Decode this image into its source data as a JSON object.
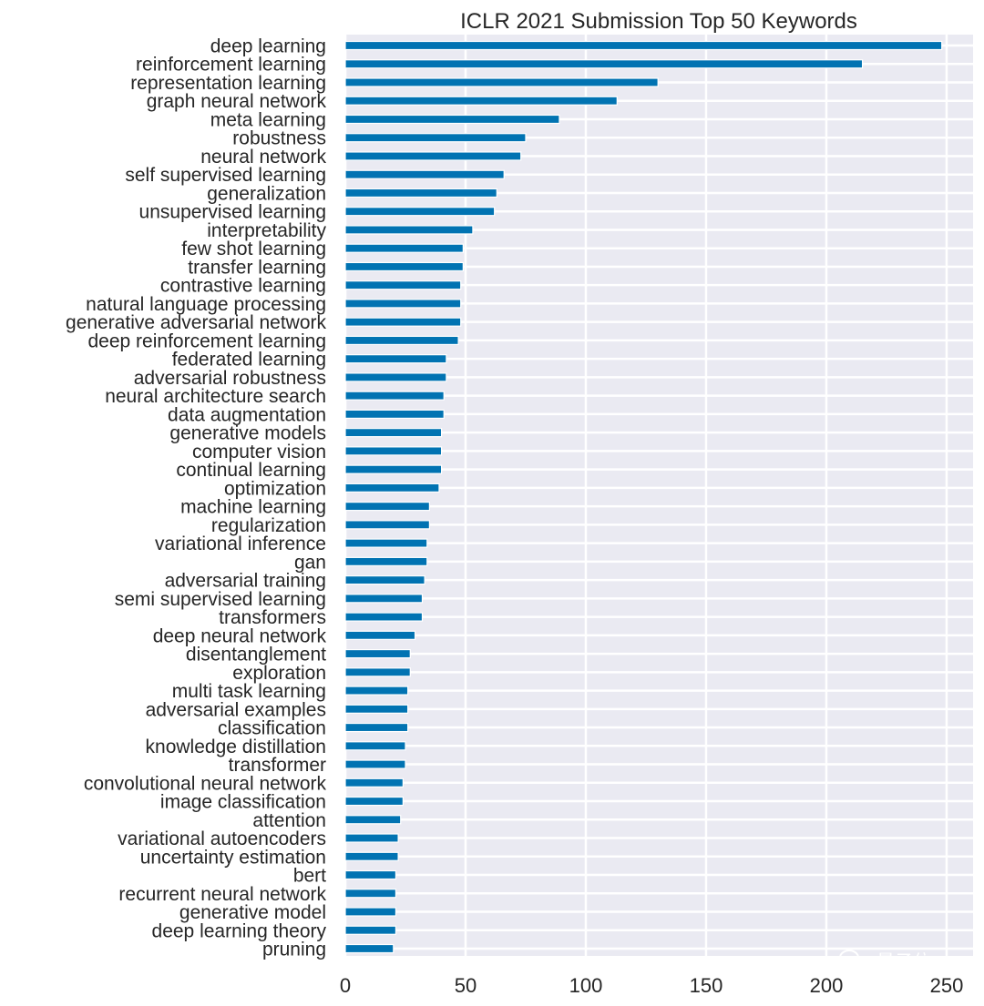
{
  "chart_data": {
    "type": "bar",
    "orientation": "horizontal",
    "title": "ICLR 2021 Submission Top 50 Keywords",
    "xlabel": "",
    "ylabel": "",
    "xlim": [
      0,
      261
    ],
    "xticks": [
      0,
      50,
      100,
      150,
      200,
      250
    ],
    "grid": true,
    "bar_color": "#0173B2",
    "background_color": "#EAEAF2",
    "categories": [
      "deep learning",
      "reinforcement learning",
      "representation learning",
      "graph neural network",
      "meta learning",
      "robustness",
      "neural network",
      "self supervised learning",
      "generalization",
      "unsupervised learning",
      "interpretability",
      "few shot learning",
      "transfer learning",
      "contrastive learning",
      "natural language processing",
      "generative adversarial network",
      "deep reinforcement learning",
      "federated learning",
      "adversarial robustness",
      "neural architecture search",
      "data augmentation",
      "generative models",
      "computer vision",
      "continual learning",
      "optimization",
      "machine learning",
      "regularization",
      "variational inference",
      "gan",
      "adversarial training",
      "semi supervised learning",
      "transformers",
      "deep neural network",
      "disentanglement",
      "exploration",
      "multi task learning",
      "adversarial examples",
      "classification",
      "knowledge distillation",
      "transformer",
      "convolutional neural network",
      "image classification",
      "attention",
      "variational autoencoders",
      "uncertainty estimation",
      "bert",
      "recurrent neural network",
      "generative model",
      "deep learning theory",
      "pruning"
    ],
    "values": [
      248,
      215,
      130,
      113,
      89,
      75,
      73,
      66,
      63,
      62,
      53,
      49,
      49,
      48,
      48,
      48,
      47,
      42,
      42,
      41,
      41,
      40,
      40,
      40,
      39,
      35,
      35,
      34,
      34,
      33,
      32,
      32,
      29,
      27,
      27,
      26,
      26,
      26,
      25,
      25,
      24,
      24,
      23,
      22,
      22,
      21,
      21,
      21,
      21,
      20
    ]
  },
  "watermark": {
    "text": "量子位",
    "icon": "wechat-icon"
  }
}
